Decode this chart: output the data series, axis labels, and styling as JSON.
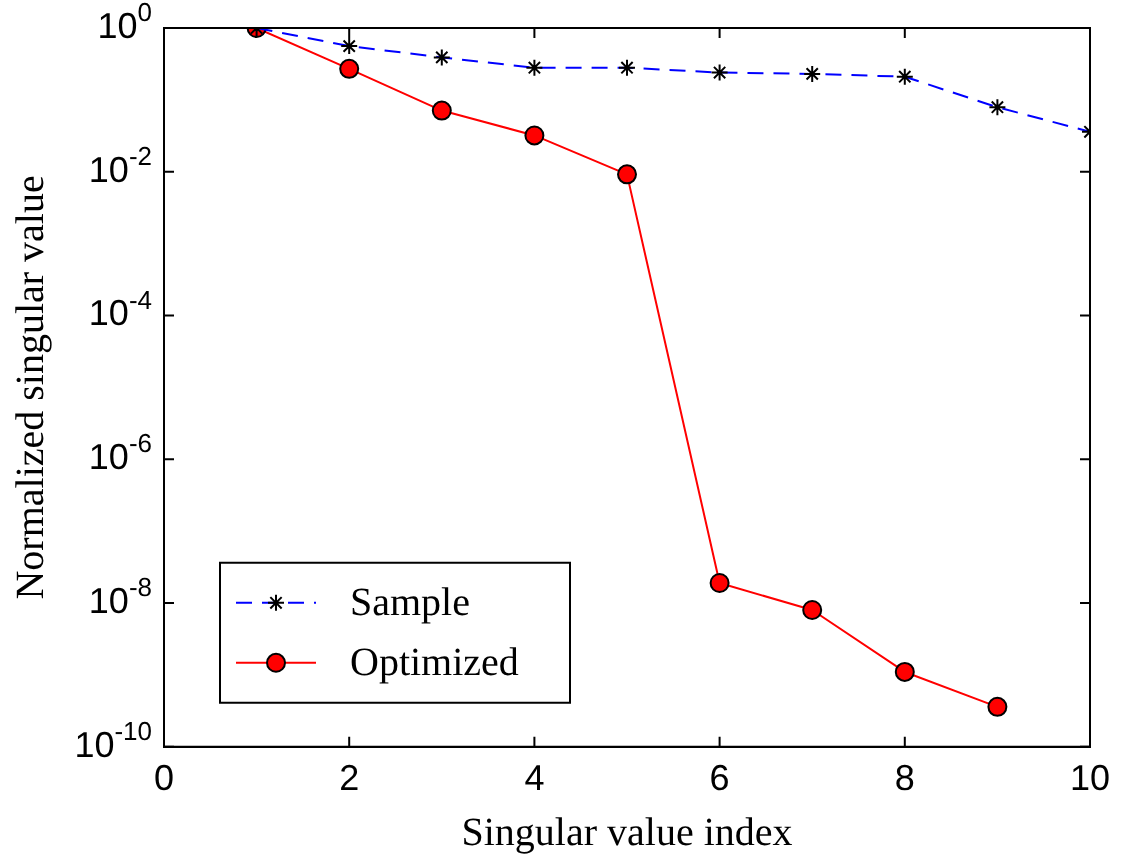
{
  "chart_data": {
    "type": "line",
    "xlabel": "Singular value index",
    "ylabel": "Normalized singular value",
    "log": "y",
    "grid": false,
    "legend": "bottom left",
    "x": [
      1,
      2,
      3,
      4,
      5,
      6,
      7,
      8,
      9,
      10
    ],
    "xlim": [
      0,
      10
    ],
    "xticks": [
      0,
      2,
      4,
      6,
      8,
      10
    ],
    "ylim": [
      1e-10,
      1
    ],
    "yticks": [
      {
        "value": 1,
        "label": "10$^{0}$"
      },
      {
        "value": 0.01,
        "label": "10$^{-2}$"
      },
      {
        "value": 0.0001,
        "label": "10$^{-4}$"
      },
      {
        "value": 1e-06,
        "label": "10$^{-6}$"
      },
      {
        "value": 1e-08,
        "label": "10$^{-8}$"
      },
      {
        "value": 1e-10,
        "label": "10$^{-10}$"
      }
    ],
    "series": [
      {
        "name": "Sample",
        "color": "#0000ff",
        "marker": "cross",
        "line_style": "dashed",
        "values": [
          1,
          0.56,
          0.39,
          0.28,
          0.28,
          0.24,
          0.23,
          0.21,
          0.079,
          0.036
        ]
      },
      {
        "name": "Optimized",
        "color": "#ff0000",
        "marker": "circle",
        "line_style": "solid",
        "values": [
          1,
          0.27,
          0.071,
          0.032,
          0.0092,
          1.9e-08,
          8e-09,
          1.1e-09,
          3.6e-10,
          null
        ]
      }
    ]
  }
}
